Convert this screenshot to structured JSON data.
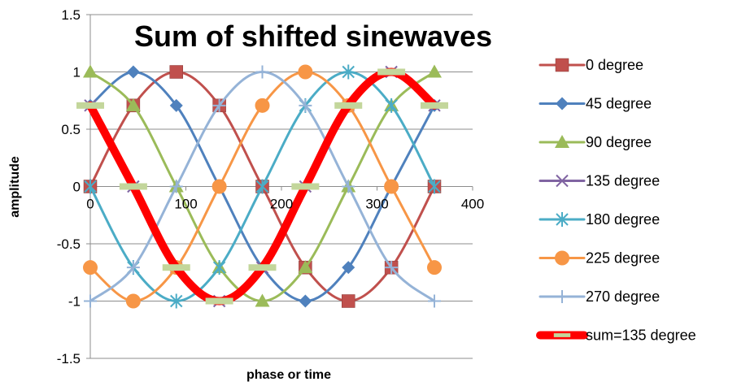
{
  "chart_data": {
    "type": "scatter",
    "title": "Sum of shifted sinewaves",
    "xlabel": "phase or time",
    "ylabel": "amplitude",
    "xlim": [
      0,
      400
    ],
    "ylim": [
      -1.5,
      1.5
    ],
    "xticks": [
      0,
      100,
      200,
      300,
      400
    ],
    "yticks": [
      -1.5,
      -1,
      -0.5,
      0,
      0.5,
      1,
      1.5
    ],
    "x_tick_labels": [
      "0",
      "100",
      "200",
      "300",
      "400"
    ],
    "y_tick_labels": [
      "-1.5",
      "-1",
      "-0.5",
      "0",
      "0.5",
      "1",
      "1.5"
    ],
    "grid": "horizontal",
    "legend_position": "right",
    "x": [
      0,
      45,
      90,
      135,
      180,
      225,
      270,
      315,
      360
    ],
    "series": [
      {
        "name": "0 degree",
        "color": "#c0504d",
        "marker": "square",
        "values": [
          0,
          0.707,
          1,
          0.707,
          0,
          -0.707,
          -1,
          -0.707,
          0
        ]
      },
      {
        "name": "45 degree",
        "color": "#4f81bd",
        "marker": "diamond",
        "values": [
          0.707,
          1,
          0.707,
          0,
          -0.707,
          -1,
          -0.707,
          0,
          0.707
        ]
      },
      {
        "name": "90 degree",
        "color": "#9bbb59",
        "marker": "triangle",
        "values": [
          1,
          0.707,
          0,
          -0.707,
          -1,
          -0.707,
          0,
          0.707,
          1
        ]
      },
      {
        "name": "135 degree",
        "color": "#8064a2",
        "marker": "x",
        "values": [
          0.707,
          0,
          -0.707,
          -1,
          -0.707,
          0,
          0.707,
          1,
          0.707
        ]
      },
      {
        "name": "180 degree",
        "color": "#4bacc6",
        "marker": "star",
        "values": [
          0,
          -0.707,
          -1,
          -0.707,
          0,
          0.707,
          1,
          0.707,
          0
        ]
      },
      {
        "name": "225 degree",
        "color": "#f79646",
        "marker": "circle",
        "values": [
          -0.707,
          -1,
          -0.707,
          0,
          0.707,
          1,
          0.707,
          0,
          -0.707
        ]
      },
      {
        "name": "270 degree",
        "color": "#95b3d7",
        "marker": "plus",
        "values": [
          -1,
          -0.707,
          0,
          0.707,
          1,
          0.707,
          0,
          -0.707,
          -1
        ]
      },
      {
        "name": "sum=135 degree",
        "color": "#ff0000",
        "marker": "dash",
        "marker_color": "#c3d69b",
        "values": [
          0.707,
          0,
          -0.707,
          -1,
          -0.707,
          0,
          0.707,
          1,
          0.707
        ]
      }
    ]
  }
}
